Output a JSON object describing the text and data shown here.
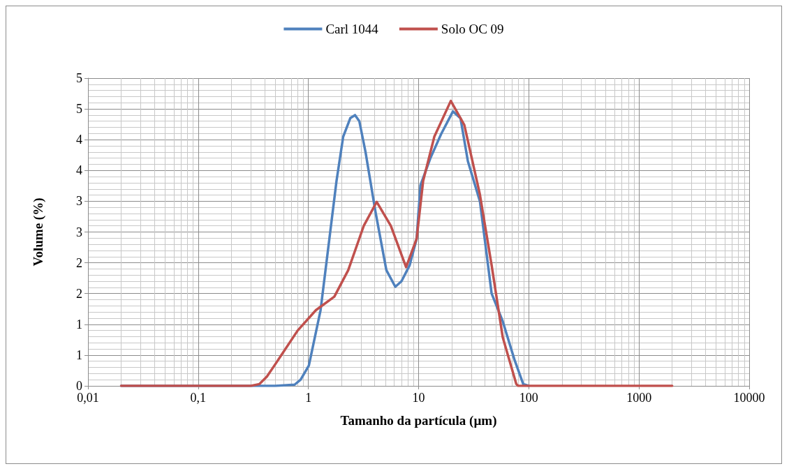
{
  "chart_data": {
    "type": "line",
    "xlabel": "Tamanho da partícula (µm)",
    "ylabel": "Volume (%)",
    "log": "x",
    "xlim": [
      0.01,
      10000
    ],
    "xticks": [
      {
        "value": 0.01,
        "label": "0,01"
      },
      {
        "value": 0.1,
        "label": "0,1"
      },
      1,
      10,
      100,
      1000,
      10000
    ],
    "ylim": [
      0,
      5
    ],
    "yticks": [
      0,
      {
        "value": 0.5,
        "label": "1"
      },
      1,
      {
        "value": 1.5,
        "label": "2"
      },
      2,
      {
        "value": 2.5,
        "label": "3"
      },
      3,
      {
        "value": 3.5,
        "label": "4"
      },
      4,
      {
        "value": 4.5,
        "label": "5"
      },
      5
    ],
    "grid": true,
    "legend": "top",
    "marker": "none",
    "line_style": "solid",
    "series": [
      {
        "name": "Carl 1044",
        "color": "#4f81bd",
        "x": [
          0.02,
          0.5,
          0.75,
          0.85,
          1.01,
          1.29,
          1.8,
          2.07,
          2.4,
          2.65,
          2.9,
          3.3,
          4.06,
          5.1,
          6.15,
          7.0,
          8.3,
          9.6,
          10.4,
          12.8,
          16,
          20.5,
          24,
          28,
          36,
          46,
          58,
          74,
          89,
          100
        ],
        "values": [
          0,
          0,
          0.02,
          0.1,
          0.33,
          1.23,
          3.33,
          4.05,
          4.35,
          4.4,
          4.3,
          3.8,
          2.83,
          1.88,
          1.61,
          1.7,
          1.96,
          2.39,
          3.26,
          3.7,
          4.09,
          4.46,
          4.35,
          3.65,
          3.0,
          1.5,
          1.05,
          0.43,
          0.03,
          0
        ]
      },
      {
        "name": "Solo OC 09",
        "color": "#c0504d",
        "x": [
          0.02,
          0.3,
          0.36,
          0.42,
          0.5,
          0.8,
          1.17,
          1.72,
          2.3,
          3.18,
          4.17,
          5.6,
          7.7,
          9.6,
          11,
          13.9,
          19.6,
          26,
          36,
          46,
          58,
          77,
          80,
          2000
        ],
        "values": [
          0,
          0,
          0.03,
          0.15,
          0.35,
          0.9,
          1.23,
          1.45,
          1.88,
          2.6,
          2.99,
          2.6,
          1.93,
          2.39,
          3.33,
          4.05,
          4.63,
          4.24,
          3.11,
          1.96,
          0.79,
          0.03,
          0,
          0
        ]
      }
    ]
  }
}
